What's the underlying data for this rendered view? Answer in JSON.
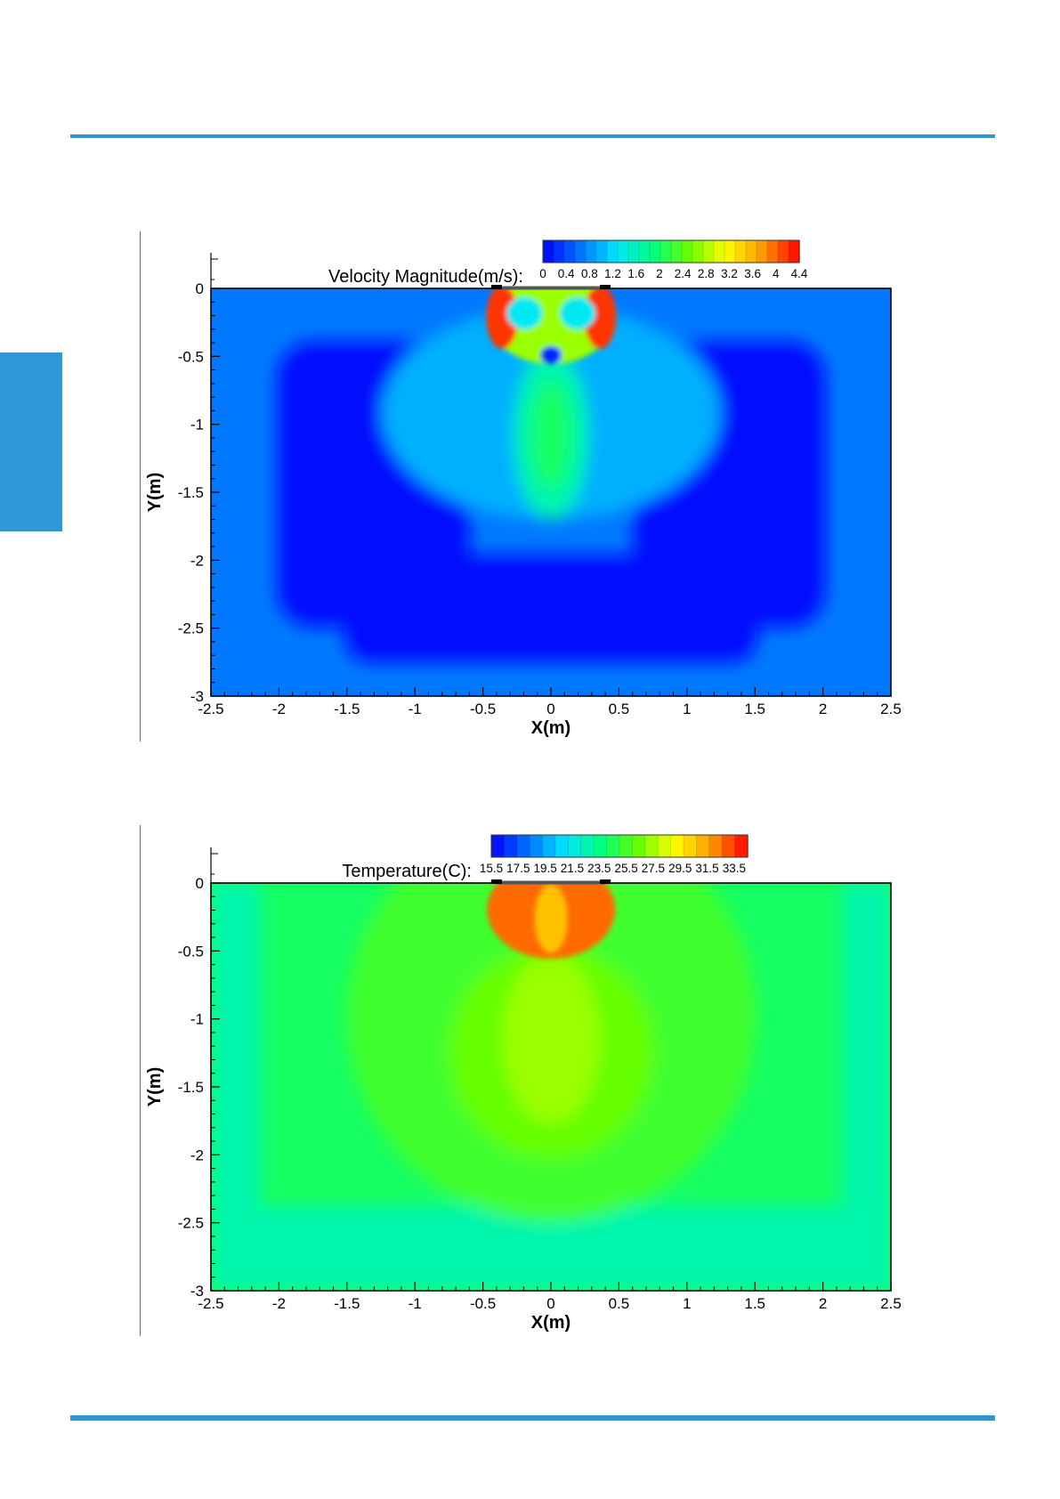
{
  "page": {
    "accent_color": "#2f97d6"
  },
  "chart_data": [
    {
      "type": "heatmap",
      "title": "Velocity Magnitude(m/s):",
      "xlabel": "X(m)",
      "ylabel": "Y(m)",
      "xlim": [
        -2.5,
        2.5
      ],
      "ylim": [
        -3,
        0
      ],
      "xticks": [
        "-2.5",
        "-2",
        "-1.5",
        "-1",
        "-0.5",
        "0",
        "0.5",
        "1",
        "1.5",
        "2",
        "2.5"
      ],
      "yticks": [
        "0",
        "-0.5",
        "-1",
        "-1.5",
        "-2",
        "-2.5",
        "-3"
      ],
      "colorbar_labels": [
        "0",
        "0.4",
        "0.8",
        "1.2",
        "1.6",
        "2",
        "2.4",
        "2.8",
        "3.2",
        "3.6",
        "4",
        "4.4"
      ],
      "colorbar_range": [
        0,
        4.4
      ],
      "colormap": [
        "#0000ff",
        "#0072ff",
        "#00e5ff",
        "#00ff7f",
        "#66ff00",
        "#ffff00",
        "#ff9900",
        "#ff0000"
      ],
      "inlet": {
        "x": [
          -0.4,
          0.4
        ],
        "y": 0
      },
      "grid": false
    },
    {
      "type": "heatmap",
      "title": "Temperature(C):",
      "xlabel": "X(m)",
      "ylabel": "Y(m)",
      "xlim": [
        -2.5,
        2.5
      ],
      "ylim": [
        -3,
        0
      ],
      "xticks": [
        "-2.5",
        "-2",
        "-1.5",
        "-1",
        "-0.5",
        "0",
        "0.5",
        "1",
        "1.5",
        "2",
        "2.5"
      ],
      "yticks": [
        "0",
        "-0.5",
        "-1",
        "-1.5",
        "-2",
        "-2.5",
        "-3"
      ],
      "colorbar_labels": [
        "15.5",
        "17.5",
        "19.5",
        "21.5",
        "23.5",
        "25.5",
        "27.5",
        "29.5",
        "31.5",
        "33.5"
      ],
      "colorbar_range": [
        15.5,
        34.5
      ],
      "colormap": [
        "#0000ff",
        "#0072ff",
        "#00e5ff",
        "#00ff7f",
        "#66ff00",
        "#ffff00",
        "#ff9900",
        "#ff0000"
      ],
      "inlet": {
        "x": [
          -0.4,
          0.4
        ],
        "y": 0
      },
      "grid": false
    }
  ]
}
